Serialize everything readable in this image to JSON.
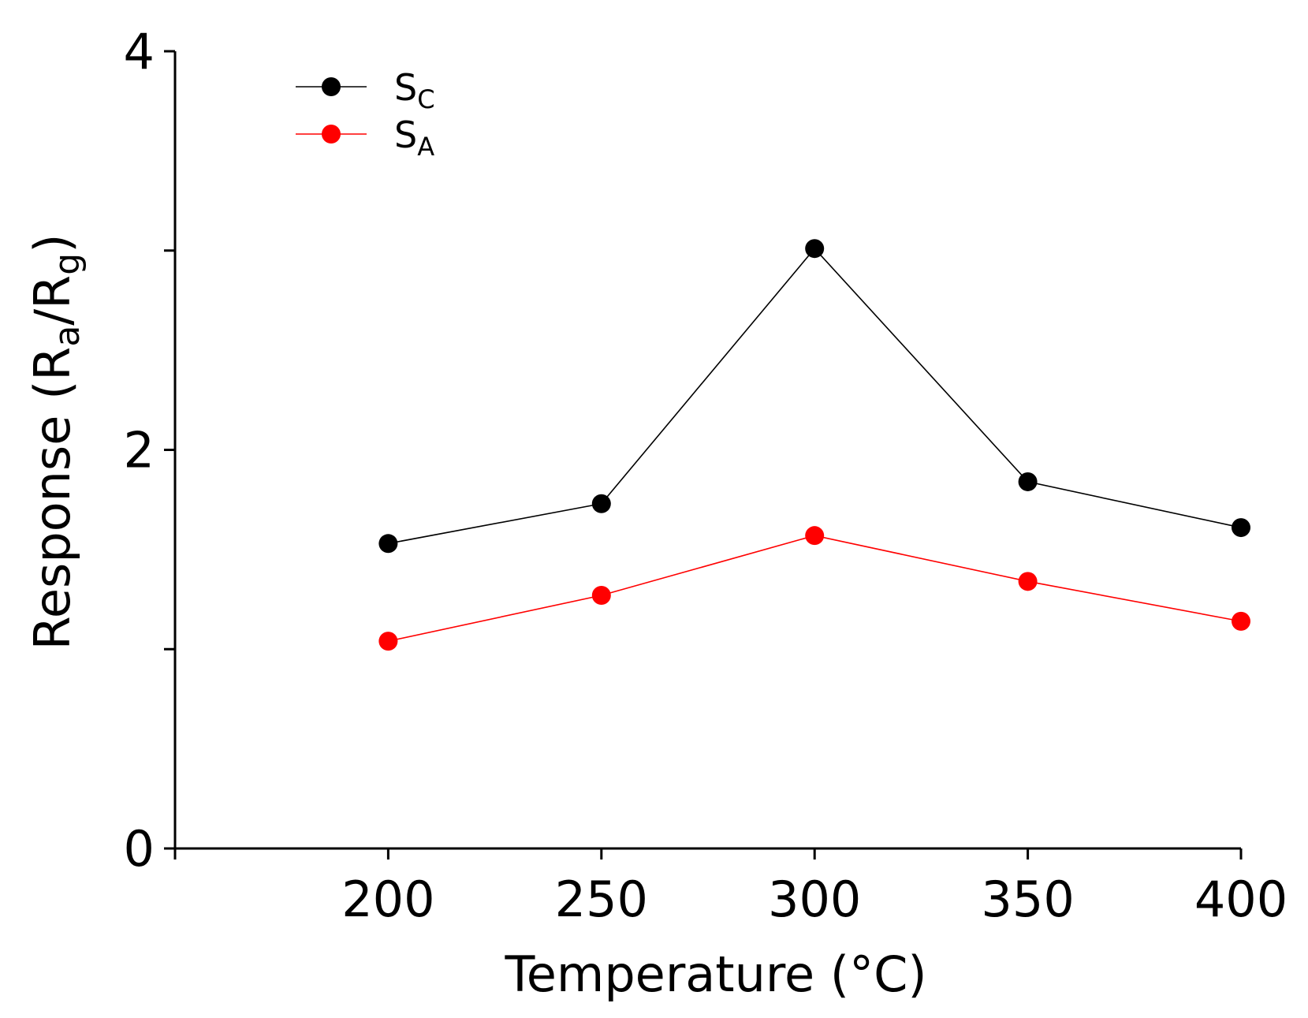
{
  "chart_data": {
    "type": "line",
    "title": "",
    "xlabel": "Temperature (°C)",
    "ylabel": {
      "prefix": "Response (R",
      "sub1": "a",
      "mid": "/R",
      "sub2": "g",
      "suffix": ")"
    },
    "x": [
      200,
      250,
      300,
      350,
      400
    ],
    "xlim": [
      150,
      400
    ],
    "ylim": [
      0,
      4
    ],
    "xticks": [
      200,
      250,
      300,
      350,
      400
    ],
    "xtick_labels": [
      "200",
      "250",
      "300",
      "350",
      "400"
    ],
    "yticks": [
      0,
      1,
      2,
      3,
      4
    ],
    "ytick_labels": [
      "0",
      "",
      "2",
      "",
      "4"
    ],
    "legend_position": "top-left",
    "grid": false,
    "series": [
      {
        "name": "SC",
        "label_main": "S",
        "label_sub": "C",
        "color": "#000000",
        "values": [
          1.53,
          1.73,
          3.01,
          1.84,
          1.61
        ]
      },
      {
        "name": "SA",
        "label_main": "S",
        "label_sub": "A",
        "color": "#ff0000",
        "values": [
          1.04,
          1.27,
          1.57,
          1.34,
          1.14
        ]
      }
    ]
  }
}
